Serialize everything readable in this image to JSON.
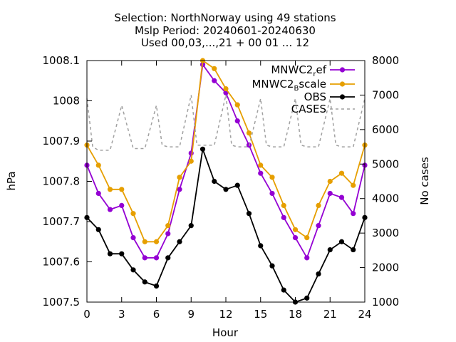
{
  "chart_data": {
    "type": "line",
    "title_lines": [
      "Selection: NorthNorway using    49 stations",
      "Mslp   Period: 20240601-20240630",
      "Used 00,03,...,21 + 00 01 ... 12"
    ],
    "xlabel": "Hour",
    "ylabel": "hPa",
    "y2label": "No cases",
    "xlim": [
      0,
      24
    ],
    "ylim": [
      1007.5,
      1008.1
    ],
    "y2lim": [
      1000,
      8000
    ],
    "xticks": [
      "0",
      "3",
      "6",
      "9",
      "12",
      "15",
      "18",
      "21",
      "24"
    ],
    "yticks": [
      "1007.5",
      "1007.6",
      "1007.7",
      "1007.8",
      "1007.9",
      "1008",
      "1008.1"
    ],
    "y2ticks": [
      "1000",
      "2000",
      "3000",
      "4000",
      "5000",
      "6000",
      "7000",
      "8000"
    ],
    "legend_position": "top-right",
    "x": [
      0,
      1,
      2,
      3,
      4,
      5,
      6,
      7,
      8,
      9,
      10,
      11,
      12,
      13,
      14,
      15,
      16,
      17,
      18,
      19,
      20,
      21,
      22,
      23,
      24
    ],
    "series": [
      {
        "name": "MNWC2_ref",
        "legend_main": "MNWC2",
        "legend_sub": "r",
        "legend_tail": "ef",
        "color": "#9400d3",
        "style": "solid",
        "marker": "filled-circle",
        "axis": "y",
        "values": [
          1007.84,
          1007.77,
          1007.73,
          1007.74,
          1007.66,
          1007.61,
          1007.61,
          1007.67,
          1007.78,
          1007.87,
          1008.09,
          1008.05,
          1008.02,
          1007.95,
          1007.89,
          1007.82,
          1007.77,
          1007.71,
          1007.66,
          1007.61,
          1007.69,
          1007.77,
          1007.76,
          1007.72,
          1007.84
        ]
      },
      {
        "name": "MNWC2_Bscale",
        "legend_main": "MNWC2",
        "legend_sub": "B",
        "legend_tail": "scale",
        "color": "#e69f00",
        "style": "solid",
        "marker": "filled-circle",
        "axis": "y",
        "values": [
          1007.89,
          1007.84,
          1007.78,
          1007.78,
          1007.72,
          1007.65,
          1007.65,
          1007.69,
          1007.81,
          1007.85,
          1008.1,
          1008.08,
          1008.03,
          1007.99,
          1007.92,
          1007.84,
          1007.81,
          1007.74,
          1007.68,
          1007.66,
          1007.74,
          1007.8,
          1007.82,
          1007.79,
          1007.89
        ]
      },
      {
        "name": "OBS",
        "legend_main": "OBS",
        "legend_sub": "",
        "legend_tail": "",
        "color": "#000000",
        "style": "solid",
        "marker": "filled-circle",
        "axis": "y",
        "values": [
          1007.71,
          1007.68,
          1007.62,
          1007.62,
          1007.58,
          1007.55,
          1007.54,
          1007.61,
          1007.65,
          1007.69,
          1007.88,
          1007.8,
          1007.78,
          1007.79,
          1007.72,
          1007.64,
          1007.59,
          1007.53,
          1007.5,
          1007.51,
          1007.57,
          1007.63,
          1007.65,
          1007.63,
          1007.71
        ]
      },
      {
        "name": "CASES",
        "legend_main": "CASES",
        "legend_sub": "",
        "legend_tail": "",
        "color": "#a0a0a0",
        "style": "dashed",
        "marker": "none",
        "axis": "y2",
        "x": [
          0,
          0.5,
          1,
          2,
          3,
          4,
          5,
          6,
          6.5,
          7,
          8,
          9,
          9.5,
          10,
          11,
          12,
          12.5,
          13,
          14,
          15,
          15.5,
          16,
          17,
          18,
          18.5,
          19,
          20,
          21,
          21.5,
          22,
          23,
          24
        ],
        "values": [
          6900,
          5500,
          5400,
          5400,
          6700,
          5450,
          5450,
          6700,
          5550,
          5500,
          5500,
          7000,
          5550,
          5550,
          5550,
          7000,
          5550,
          5500,
          5500,
          6900,
          5550,
          5500,
          5500,
          6900,
          5550,
          5500,
          5500,
          6900,
          5550,
          5500,
          5500,
          6900
        ]
      }
    ]
  }
}
